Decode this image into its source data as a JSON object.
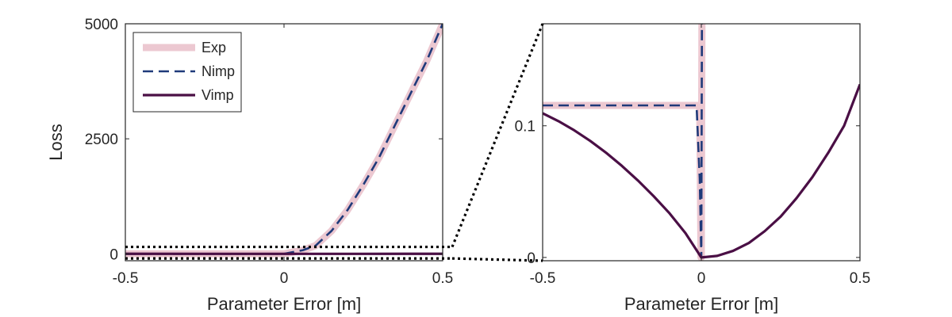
{
  "chart_data": [
    {
      "type": "line",
      "xlabel": "Parameter Error [m]",
      "ylabel": "Loss",
      "xlim": [
        -0.5,
        0.5
      ],
      "ylim": [
        -150,
        5000
      ],
      "xticks": [
        -0.5,
        0,
        0.5
      ],
      "xtick_labels": [
        "-0.5",
        "0",
        "0.5"
      ],
      "yticks": [
        0,
        2500,
        5000
      ],
      "ytick_labels": [
        "0",
        "2500",
        "5000"
      ],
      "grid": false,
      "legend": "top-left",
      "zoom_box_y": [
        -100,
        150
      ],
      "series": [
        {
          "name": "Exp",
          "color": "#ecc8d1",
          "style": "thick-solid",
          "x": [
            -0.5,
            0.0,
            0.0001,
            0.06,
            0.1,
            0.15,
            0.2,
            0.25,
            0.3,
            0.35,
            0.4,
            0.45,
            0.5
          ],
          "y": [
            0.115,
            0.115,
            0,
            80,
            180,
            500,
            950,
            1500,
            2100,
            2800,
            3500,
            4200,
            5000
          ]
        },
        {
          "name": "Nimp",
          "color": "#1f3a7a",
          "style": "dashed",
          "x": [
            -0.5,
            0.0,
            0.0001,
            0.06,
            0.1,
            0.15,
            0.2,
            0.25,
            0.3,
            0.35,
            0.4,
            0.45,
            0.5
          ],
          "y": [
            0.115,
            0.115,
            0,
            80,
            180,
            500,
            950,
            1500,
            2100,
            2800,
            3500,
            4200,
            5000
          ]
        },
        {
          "name": "Vimp",
          "color": "#4a0f45",
          "style": "solid",
          "x": [
            -0.5,
            -0.25,
            0,
            0.25,
            0.5
          ],
          "y": [
            0.11,
            0.06,
            0,
            0.04,
            0.13
          ]
        }
      ]
    },
    {
      "type": "line",
      "xlabel": "Parameter Error [m]",
      "ylabel": "",
      "xlim": [
        -0.5,
        0.5
      ],
      "ylim": [
        -0.0025,
        0.1775
      ],
      "xticks": [
        -0.5,
        0,
        0.5
      ],
      "xtick_labels": [
        "-0.5",
        "0",
        "0.5"
      ],
      "yticks": [
        0,
        0.1
      ],
      "ytick_labels": [
        "0",
        "0.1"
      ],
      "grid": false,
      "series": [
        {
          "name": "Exp",
          "color": "#ecc8d1",
          "style": "thick-solid",
          "x": [
            -0.5,
            -0.005,
            -0.001,
            0.0,
            0.001,
            0.002
          ],
          "y": [
            0.1155,
            0.1155,
            0.0,
            0.0,
            0.09,
            0.18
          ]
        },
        {
          "name": "Nimp",
          "color": "#1f3a7a",
          "style": "dashed",
          "x": [
            -0.5,
            -0.015,
            -0.005,
            0.0,
            0.001,
            0.002
          ],
          "y": [
            0.1155,
            0.1155,
            0.06,
            0.0,
            0.09,
            0.18
          ]
        },
        {
          "name": "Vimp",
          "color": "#4a0f45",
          "style": "solid",
          "x": [
            -0.5,
            -0.45,
            -0.4,
            -0.35,
            -0.3,
            -0.25,
            -0.2,
            -0.15,
            -0.1,
            -0.05,
            0,
            0.05,
            0.1,
            0.15,
            0.2,
            0.25,
            0.3,
            0.35,
            0.4,
            0.45,
            0.5
          ],
          "y": [
            0.1095,
            0.1035,
            0.0965,
            0.0885,
            0.0795,
            0.0695,
            0.0585,
            0.0465,
            0.0335,
            0.0185,
            0.0,
            0.0012,
            0.005,
            0.011,
            0.02,
            0.031,
            0.045,
            0.061,
            0.0795,
            0.1,
            0.1315
          ]
        }
      ]
    }
  ]
}
